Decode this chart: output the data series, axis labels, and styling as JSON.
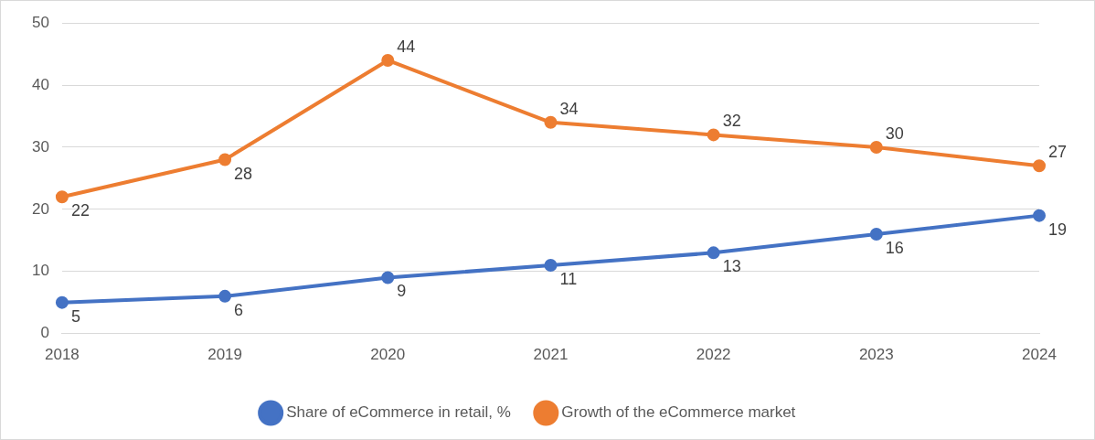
{
  "chart_data": {
    "type": "line",
    "categories": [
      "2018",
      "2019",
      "2020",
      "2021",
      "2022",
      "2023",
      "2024"
    ],
    "series": [
      {
        "name": "Share of eCommerce in retail, %",
        "color": "#4472c4",
        "values": [
          5,
          6,
          9,
          11,
          13,
          16,
          19
        ]
      },
      {
        "name": "Growth of the eCommerce market",
        "color": "#ed7d31",
        "values": [
          22,
          28,
          44,
          34,
          32,
          30,
          27
        ]
      }
    ],
    "ylim": [
      0,
      50
    ],
    "yticks": [
      0,
      10,
      20,
      30,
      40,
      50
    ],
    "grid": "y",
    "legend": "bottom",
    "marker": "circle",
    "line_style": "solid",
    "data_labels": true
  }
}
